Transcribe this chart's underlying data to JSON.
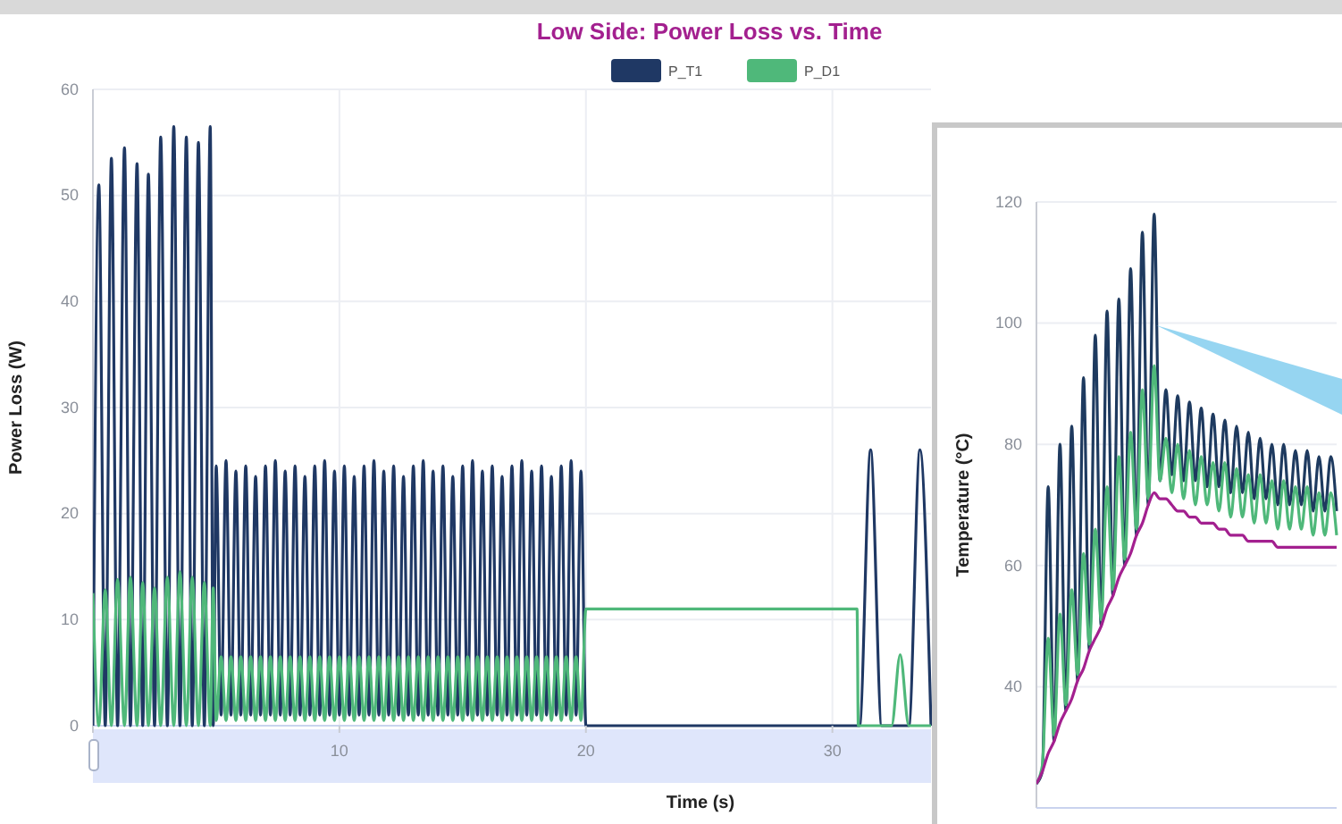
{
  "chart_data": [
    {
      "type": "line",
      "title": "Low Side: Power Loss vs. Time",
      "xlabel": "Time (s)",
      "ylabel": "Power Loss (W)",
      "xlim": [
        0,
        34
      ],
      "xticks": [
        {
          "value": 0,
          "label": null
        },
        10,
        20,
        30
      ],
      "ylim": [
        0,
        60
      ],
      "yticks": [
        0,
        10,
        20,
        30,
        40,
        50,
        60
      ],
      "grid": true,
      "legend": "top",
      "series": [
        {
          "name": "P_T1",
          "color": "#1f3864",
          "x": [
            0,
            0.24,
            0.5,
            0.75,
            1,
            1.28,
            1.52,
            1.79,
            2.02,
            2.25,
            2.5,
            2.75,
            3.02,
            3.28,
            3.53,
            3.79,
            4.03,
            4.28,
            4.52,
            4.76,
            4.88,
            5,
            5.2,
            5.4,
            5.6,
            5.8,
            6,
            6.2,
            6.4,
            6.6,
            6.8,
            7,
            7.2,
            7.4,
            7.6,
            7.8,
            8,
            8.2,
            8.4,
            8.6,
            8.8,
            9,
            9.2,
            9.4,
            9.6,
            9.8,
            10,
            10.2,
            10.4,
            10.6,
            10.8,
            11,
            11.2,
            11.4,
            11.6,
            11.8,
            12,
            12.2,
            12.4,
            12.6,
            12.8,
            13,
            13.2,
            13.4,
            13.6,
            13.8,
            14,
            14.2,
            14.4,
            14.6,
            14.8,
            15,
            15.2,
            15.4,
            15.6,
            15.8,
            16,
            16.2,
            16.4,
            16.6,
            16.8,
            17,
            17.2,
            17.4,
            17.6,
            17.8,
            18,
            18.2,
            18.4,
            18.6,
            18.8,
            19,
            19.2,
            19.4,
            19.6,
            19.8,
            20,
            31.1,
            31.55,
            32,
            33.1,
            33.55,
            34
          ],
          "values": [
            0,
            51,
            0,
            53.5,
            0,
            54.5,
            0,
            53,
            0,
            52,
            0,
            55.5,
            0,
            56.5,
            0,
            55.5,
            0,
            55,
            0,
            56.5,
            0,
            24.5,
            1,
            25,
            1,
            24,
            1,
            24.5,
            1,
            23.5,
            1,
            24.5,
            1,
            25,
            1,
            24,
            1,
            24.5,
            1,
            23.5,
            1,
            24.5,
            1,
            25,
            1,
            24,
            1,
            24.5,
            1,
            23.5,
            1,
            24.5,
            1,
            25,
            1,
            24,
            1,
            24.5,
            1,
            23.5,
            1,
            24.5,
            1,
            25,
            1,
            24,
            1,
            24.5,
            1,
            23.5,
            1,
            24.5,
            1,
            25,
            1,
            24,
            1,
            24.5,
            1,
            23.5,
            1,
            24.5,
            1,
            25,
            1,
            24,
            1,
            24.5,
            1,
            23.5,
            1,
            24.5,
            1,
            25,
            1,
            24,
            0,
            0,
            26,
            0,
            0,
            26,
            0
          ]
        },
        {
          "name": "P_D1",
          "color": "#4fb87a",
          "x": [
            0,
            0.24,
            0.5,
            0.75,
            1,
            1.28,
            1.52,
            1.79,
            2.02,
            2.25,
            2.5,
            2.75,
            3.02,
            3.28,
            3.53,
            3.79,
            4.03,
            4.28,
            4.52,
            4.76,
            4.88,
            5,
            5.2,
            5.4,
            5.6,
            5.8,
            6,
            6.2,
            6.4,
            6.6,
            6.8,
            7,
            7.2,
            7.4,
            7.6,
            7.8,
            8,
            8.2,
            8.4,
            8.6,
            8.8,
            9,
            9.2,
            9.4,
            9.6,
            9.8,
            10,
            10.2,
            10.4,
            10.6,
            10.8,
            11,
            11.2,
            11.4,
            11.6,
            11.8,
            12,
            12.2,
            12.4,
            12.6,
            12.8,
            13,
            13.2,
            13.4,
            13.6,
            13.8,
            14,
            14.2,
            14.4,
            14.6,
            14.8,
            15,
            15.2,
            15.4,
            15.6,
            15.8,
            16,
            16.2,
            16.4,
            16.6,
            16.8,
            17,
            17.2,
            17.4,
            17.6,
            17.8,
            18,
            18.2,
            18.4,
            18.6,
            18.8,
            19,
            19.2,
            19.4,
            19.6,
            19.8,
            20,
            31,
            31.05,
            32.4,
            32.75,
            33.1,
            34
          ],
          "values": [
            12.5,
            0,
            12.8,
            0,
            13.8,
            0,
            14,
            0,
            13.5,
            0,
            13,
            0,
            14,
            0,
            14.5,
            0,
            14,
            0,
            13.5,
            0,
            13,
            0.5,
            6.5,
            0.5,
            6.5,
            0.5,
            6.5,
            0.5,
            6.5,
            0.5,
            6.5,
            0.5,
            6.5,
            0.5,
            6.5,
            0.5,
            6.5,
            0.5,
            6.5,
            0.5,
            6.5,
            0.5,
            6.5,
            0.5,
            6.5,
            0.5,
            6.5,
            0.5,
            6.5,
            0.5,
            6.5,
            0.5,
            6.5,
            0.5,
            6.5,
            0.5,
            6.5,
            0.5,
            6.5,
            0.5,
            6.5,
            0.5,
            6.5,
            0.5,
            6.5,
            0.5,
            6.5,
            0.5,
            6.5,
            0.5,
            6.5,
            0.5,
            6.5,
            0.5,
            6.5,
            0.5,
            6.5,
            0.5,
            6.5,
            0.5,
            6.5,
            0.5,
            6.5,
            0.5,
            6.5,
            0.5,
            6.5,
            0.5,
            6.5,
            0.5,
            6.5,
            0.5,
            6.5,
            0.5,
            6.5,
            0.5,
            11,
            11,
            0,
            0,
            6.7,
            0,
            0
          ]
        }
      ]
    },
    {
      "type": "line",
      "ylabel": "Temperature (°C)",
      "categories": [
        null,
        null,
        null,
        null,
        null,
        null,
        null,
        null,
        null,
        null,
        null,
        null,
        null,
        null,
        null,
        null,
        null,
        null,
        null,
        null,
        null,
        null,
        null,
        null,
        null,
        null,
        null,
        null,
        null,
        null,
        null,
        null,
        null,
        null,
        null,
        null,
        null,
        null,
        null,
        null,
        null,
        null,
        null,
        null,
        null,
        null,
        null,
        null,
        null,
        null,
        null,
        null
      ],
      "ylim": [
        20,
        120
      ],
      "yticks": [
        40,
        60,
        80,
        100,
        120
      ],
      "grid": "y",
      "tick_labels": "y",
      "series": [
        {
          "color": "#1e3a5f",
          "values": [
            24,
            26,
            73,
            31,
            80,
            36,
            83,
            41,
            91,
            46,
            98,
            50,
            102,
            55,
            104,
            60,
            109,
            65,
            115,
            70,
            118,
            74,
            89,
            75,
            88,
            74,
            87,
            74,
            86,
            73,
            85,
            73,
            84,
            72,
            83,
            72,
            82,
            71,
            81,
            71,
            80,
            70,
            80,
            70,
            79,
            70,
            79,
            69,
            78,
            69,
            78,
            69
          ]
        },
        {
          "color": "#4fb87a",
          "values": [
            24,
            27,
            48,
            32,
            52,
            37,
            56,
            42,
            62,
            47,
            66,
            51,
            73,
            56,
            78,
            61,
            82,
            66,
            89,
            71,
            93,
            74,
            81,
            72,
            80,
            71,
            79,
            70,
            78,
            70,
            77,
            69,
            77,
            68,
            76,
            68,
            75,
            67,
            75,
            67,
            74,
            66,
            74,
            66,
            73,
            66,
            73,
            65,
            72,
            65,
            72,
            65
          ]
        },
        {
          "color": "#a3208f",
          "values": [
            24,
            26,
            29,
            31,
            34,
            36,
            38,
            41,
            43,
            46,
            48,
            50,
            53,
            55,
            58,
            60,
            62,
            65,
            67,
            70,
            72,
            71,
            71,
            70,
            69,
            69,
            68,
            68,
            67,
            67,
            67,
            66,
            66,
            65,
            65,
            65,
            64,
            64,
            64,
            64,
            64,
            63,
            63,
            63,
            63,
            63,
            63,
            63,
            63,
            63,
            63,
            63
          ]
        }
      ]
    }
  ]
}
